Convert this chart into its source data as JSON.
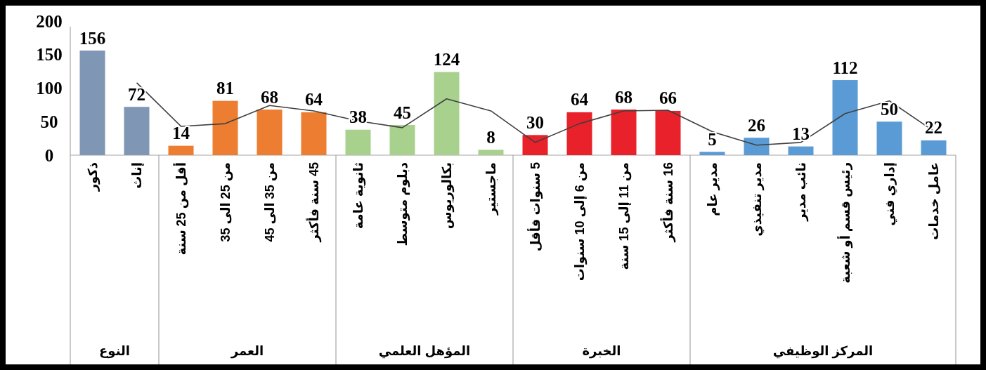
{
  "chart_data": {
    "type": "bar",
    "categories": [
      "ذكور",
      "إناث",
      "أقل من 25 سنة",
      "من 25 الى 35",
      "من 35 الى 45",
      "45 سنة فأكثر",
      "ثانوية عامة",
      "دبلوم متوسط",
      "بكالوريوس",
      "ماجستير",
      "5 سنوات فأقل",
      "من 6 إلى 10 سنوات",
      "من 11 إلى 15 سنة",
      "16 سنة فأكثر",
      "مدير عام",
      "مدير تنفيذي",
      "نائب مدير",
      "رئيس قسم أو شعبة",
      "إداري فني",
      "عامل خدمات"
    ],
    "series": [
      {
        "values": [
          156,
          72,
          14,
          81,
          68,
          64,
          38,
          45,
          124,
          8,
          30,
          64,
          68,
          66,
          5,
          26,
          13,
          112,
          50,
          22
        ],
        "value_labels": [
          "156",
          "72",
          "14",
          "81",
          "68",
          "64",
          "38",
          "45",
          "124",
          "8",
          "30",
          "64",
          "68",
          "66",
          "5",
          "26",
          "13",
          "112",
          "50",
          "22"
        ],
        "colors": [
          "#7f96b5",
          "#7f96b5",
          "#ed7d31",
          "#ed7d31",
          "#ed7d31",
          "#ed7d31",
          "#a9d18e",
          "#a9d18e",
          "#a9d18e",
          "#a9d18e",
          "#e8212a",
          "#e8212a",
          "#e8212a",
          "#e8212a",
          "#5b9bd5",
          "#5b9bd5",
          "#5b9bd5",
          "#5b9bd5",
          "#5b9bd5",
          "#5b9bd5"
        ]
      },
      {
        "type": "line",
        "color": "#404040",
        "values": [
          null,
          108,
          43,
          47,
          74,
          66,
          51,
          41,
          84,
          66,
          19,
          47,
          66,
          67,
          35,
          15,
          19,
          62,
          81,
          36
        ]
      }
    ],
    "ylim": [
      0,
      200
    ],
    "yticks": [
      0,
      50,
      100,
      150,
      200
    ],
    "grid": false,
    "marker": "none",
    "line_style": "solid",
    "annotations": [
      "النوع",
      "العمر",
      "المؤهل العلمي",
      "الخبرة",
      "المركز الوظيفي"
    ]
  }
}
